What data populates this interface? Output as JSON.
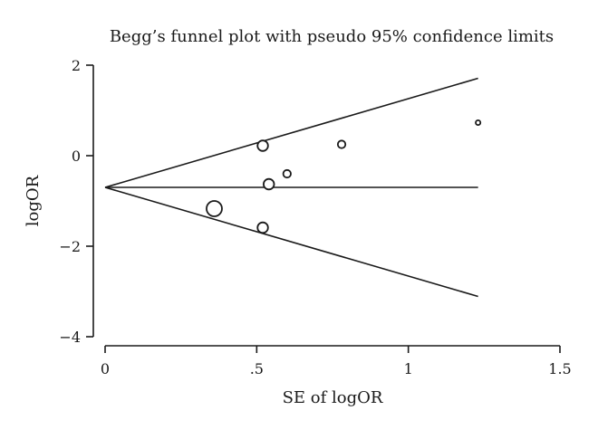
{
  "chart_data": {
    "type": "scatter",
    "title": "Begg’s funnel plot with pseudo 95% confidence limits",
    "xlabel": "SE of logOR",
    "ylabel": "logOR",
    "xlim": [
      0,
      1.5
    ],
    "ylim": [
      -4,
      2
    ],
    "x_ticks": [
      {
        "value": 0,
        "label": "0"
      },
      {
        "value": 0.5,
        "label": ".5"
      },
      {
        "value": 1,
        "label": "1"
      },
      {
        "value": 1.5,
        "label": "1.5"
      }
    ],
    "y_ticks": [
      {
        "value": 2,
        "label": "2"
      },
      {
        "value": 0,
        "label": "0"
      },
      {
        "value": -2,
        "label": "−2"
      },
      {
        "value": -4,
        "label": "−4"
      }
    ],
    "pooled_logOR": -0.7,
    "confidence_limits": {
      "se_max": 1.23,
      "upper_at_se_max": 1.71,
      "lower_at_se_max": -3.11
    },
    "points": [
      {
        "se": 0.52,
        "logOR": 0.22,
        "weight": "medium"
      },
      {
        "se": 0.78,
        "logOR": 0.25,
        "weight": "small"
      },
      {
        "se": 1.23,
        "logOR": 0.73,
        "weight": "tiny"
      },
      {
        "se": 0.6,
        "logOR": -0.4,
        "weight": "small"
      },
      {
        "se": 0.54,
        "logOR": -0.63,
        "weight": "medium"
      },
      {
        "se": 0.36,
        "logOR": -1.17,
        "weight": "large"
      },
      {
        "se": 0.52,
        "logOR": -1.59,
        "weight": "medium"
      }
    ]
  }
}
